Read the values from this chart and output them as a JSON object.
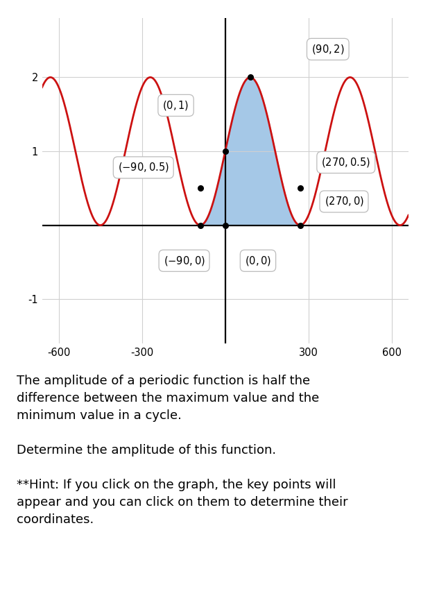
{
  "xlim": [
    -660,
    660
  ],
  "ylim": [
    -1.6,
    2.8
  ],
  "xticks": [
    -600,
    -300,
    0,
    300,
    600
  ],
  "yticks": [
    -1,
    0,
    1,
    2
  ],
  "xtick_labels": [
    "-600",
    "-300",
    "",
    "300",
    "600"
  ],
  "ytick_labels": [
    "-1",
    "",
    "1",
    "2"
  ],
  "red_curve_color": "#cc1111",
  "blue_fill_color": "#5b9bd5",
  "blue_fill_alpha": 0.55,
  "grid_color": "#d0d0d0",
  "key_pts": [
    [
      90,
      2
    ],
    [
      0,
      1
    ],
    [
      -90,
      0.5
    ],
    [
      270,
      0.5
    ],
    [
      270,
      0
    ],
    [
      -90,
      0
    ],
    [
      0,
      0
    ]
  ],
  "label_boxes": [
    {
      "text": "(90, 2)",
      "bx": 370,
      "by": 2.38
    },
    {
      "text": "(0, 1)",
      "bx": -178,
      "by": 1.62
    },
    {
      "text": "(-90, 0.5)",
      "bx": -295,
      "by": 0.78
    },
    {
      "text": "(270, 0.5)",
      "bx": 435,
      "by": 0.85
    },
    {
      "text": "(270, 0)",
      "bx": 428,
      "by": 0.32
    },
    {
      "text": "(-90, 0)",
      "bx": -148,
      "by": -0.48
    },
    {
      "text": "(0, 0)",
      "bx": 118,
      "by": -0.48
    }
  ],
  "text_block": "The amplitude of a periodic function is half the\ndifference between the maximum value and the\nminimum value in a cycle.\n\nDetermine the amplitude of this function.\n\n**Hint: If you click on the graph, the key points will\nappear and you can click on them to determine their\ncoordinates.",
  "fig_width": 6.07,
  "fig_height": 8.72,
  "dpi": 100,
  "text_fontsize": 13.0
}
